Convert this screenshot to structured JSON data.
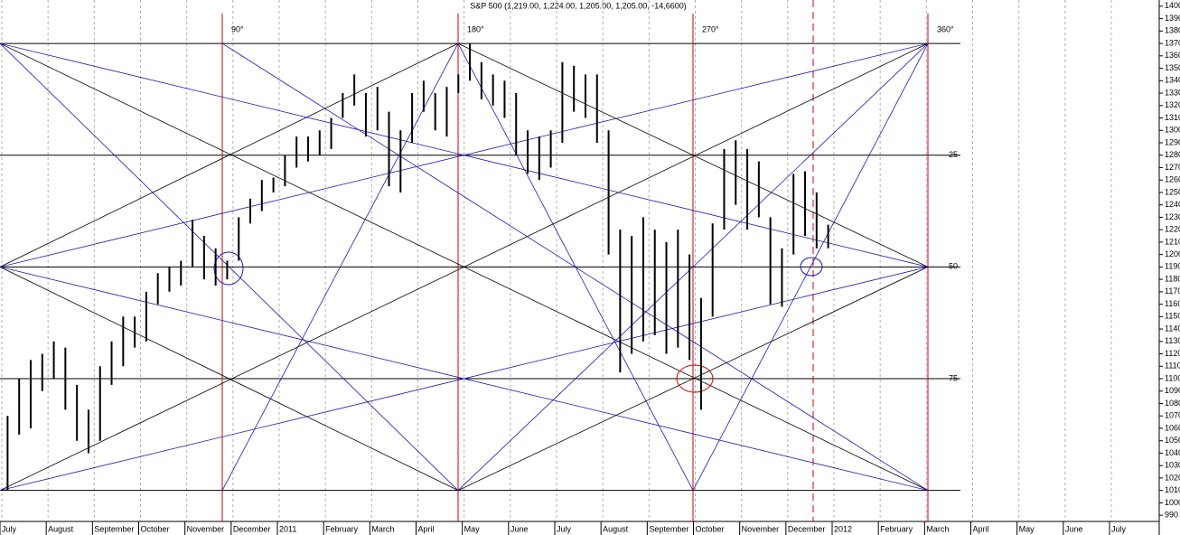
{
  "chart_data": {
    "type": "range_bar",
    "title": "S&P 500 (1,219.00, 1,224.00, 1,205.00, 1,205.00, -14,6600)",
    "color": "#000000",
    "categories": [
      "July",
      null,
      null,
      null,
      "August",
      null,
      null,
      null,
      "September",
      null,
      null,
      null,
      "October",
      null,
      null,
      null,
      "November",
      null,
      null,
      null,
      "December",
      null,
      null,
      null,
      "2011",
      null,
      null,
      null,
      "February",
      null,
      null,
      null,
      "March",
      null,
      null,
      null,
      "April",
      null,
      null,
      null,
      "May",
      null,
      null,
      null,
      "June",
      null,
      null,
      null,
      "July",
      null,
      null,
      null,
      "August",
      null,
      null,
      null,
      "September",
      null,
      null,
      null,
      "October",
      null,
      null,
      null,
      "November",
      null,
      null,
      null,
      "December",
      null,
      null,
      null,
      "2012",
      null,
      null,
      null,
      "February",
      null,
      null,
      null,
      "March",
      null,
      null,
      null,
      "April",
      null,
      null,
      null,
      "May",
      null,
      null,
      null,
      "June",
      null,
      null,
      null,
      "July"
    ],
    "lows": [
      1010,
      1055,
      1060,
      1090,
      1100,
      1075,
      1050,
      1040,
      1050,
      1095,
      1110,
      1125,
      1130,
      1160,
      1170,
      1175,
      1190,
      1180,
      1175,
      1180,
      1195,
      1225,
      1235,
      1250,
      1255,
      1270,
      1275,
      1280,
      1285,
      1310,
      1320,
      1295,
      1300,
      1255,
      1250,
      1290,
      1315,
      1300,
      1295,
      1330,
      1340,
      1325,
      1320,
      1310,
      1280,
      1265,
      1260,
      1270,
      1290,
      1315,
      1310,
      1290,
      1200,
      1105,
      1120,
      1130,
      1135,
      1120,
      1125,
      1115,
      1075,
      1150,
      1220,
      1240,
      1220,
      1230,
      1160,
      1158,
      1200,
      1215,
      1205,
      1205,
      null,
      null,
      null,
      null,
      null,
      null,
      null,
      null,
      null,
      null,
      null,
      null,
      null,
      null,
      null,
      null,
      null,
      null,
      null,
      null,
      null,
      null,
      null,
      null,
      null
    ],
    "highs": [
      1070,
      1100,
      1115,
      1120,
      1130,
      1125,
      1095,
      1075,
      1110,
      1130,
      1150,
      1150,
      1170,
      1185,
      1190,
      1195,
      1228,
      1215,
      1205,
      1195,
      1230,
      1245,
      1260,
      1262,
      1280,
      1295,
      1295,
      1300,
      1310,
      1330,
      1345,
      1330,
      1335,
      1315,
      1300,
      1330,
      1340,
      1330,
      1335,
      1345,
      1370,
      1355,
      1345,
      1340,
      1330,
      1300,
      1295,
      1300,
      1355,
      1352,
      1345,
      1345,
      1300,
      1220,
      1215,
      1230,
      1220,
      1210,
      1220,
      1200,
      1165,
      1225,
      1285,
      1292,
      1285,
      1275,
      1230,
      1205,
      1265,
      1267,
      1250,
      1224,
      null,
      null,
      null,
      null,
      null,
      null,
      null,
      null,
      null,
      null,
      null,
      null,
      null,
      null,
      null,
      null,
      null,
      null,
      null,
      null,
      null,
      null,
      null,
      null,
      null
    ],
    "ylim": [
      985,
      1405
    ],
    "yticks": [
      990,
      1000,
      1010,
      1020,
      1030,
      1040,
      1050,
      1060,
      1070,
      1080,
      1090,
      1100,
      1110,
      1120,
      1130,
      1140,
      1150,
      1160,
      1170,
      1180,
      1190,
      1200,
      1210,
      1220,
      1230,
      1240,
      1250,
      1260,
      1270,
      1280,
      1290,
      1300,
      1310,
      1320,
      1330,
      1340,
      1350,
      1360,
      1370,
      1380,
      1390,
      1400
    ],
    "levels": [
      1370,
      1280,
      1190,
      1100,
      1010
    ],
    "level_labels": [
      null,
      "25",
      "50",
      "75",
      null
    ],
    "angle_labels": [
      "90°",
      "180°",
      "270°",
      "360°"
    ],
    "grid": true
  }
}
